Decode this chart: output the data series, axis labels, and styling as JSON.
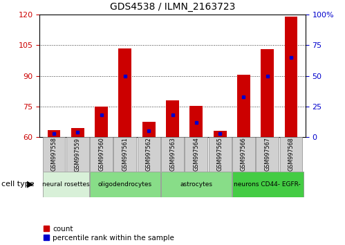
{
  "title": "GDS4538 / ILMN_2163723",
  "samples": [
    "GSM997558",
    "GSM997559",
    "GSM997560",
    "GSM997561",
    "GSM997562",
    "GSM997563",
    "GSM997564",
    "GSM997565",
    "GSM997566",
    "GSM997567",
    "GSM997568"
  ],
  "count_values": [
    63.5,
    64.5,
    75.0,
    103.5,
    67.5,
    78.0,
    75.5,
    63.0,
    90.5,
    103.0,
    119.0
  ],
  "percentile_values": [
    3,
    4,
    18,
    50,
    5,
    18,
    12,
    3,
    33,
    50,
    65
  ],
  "ylim_left": [
    60,
    120
  ],
  "ylim_right": [
    0,
    100
  ],
  "yticks_left": [
    60,
    75,
    90,
    105,
    120
  ],
  "yticks_right": [
    0,
    25,
    50,
    75,
    100
  ],
  "cell_type_groups": [
    {
      "label": "neural rosettes",
      "start": 0,
      "end": 2,
      "color": "#d8f0d8"
    },
    {
      "label": "oligodendrocytes",
      "start": 2,
      "end": 5,
      "color": "#88dd88"
    },
    {
      "label": "astrocytes",
      "start": 5,
      "end": 8,
      "color": "#88dd88"
    },
    {
      "label": "neurons CD44- EGFR-",
      "start": 8,
      "end": 11,
      "color": "#44cc44"
    }
  ],
  "bar_color": "#CC0000",
  "percentile_color": "#0000CC",
  "bar_width": 0.55,
  "grid_color": "#000000",
  "legend_count_label": "count",
  "legend_percentile_label": "percentile rank within the sample",
  "cell_type_label": "cell type",
  "background_color": "#ffffff",
  "plot_bg": "#ffffff",
  "tick_color_left": "#CC0000",
  "tick_color_right": "#0000CC",
  "sample_box_color": "#D0D0D0",
  "spine_color": "#888888"
}
